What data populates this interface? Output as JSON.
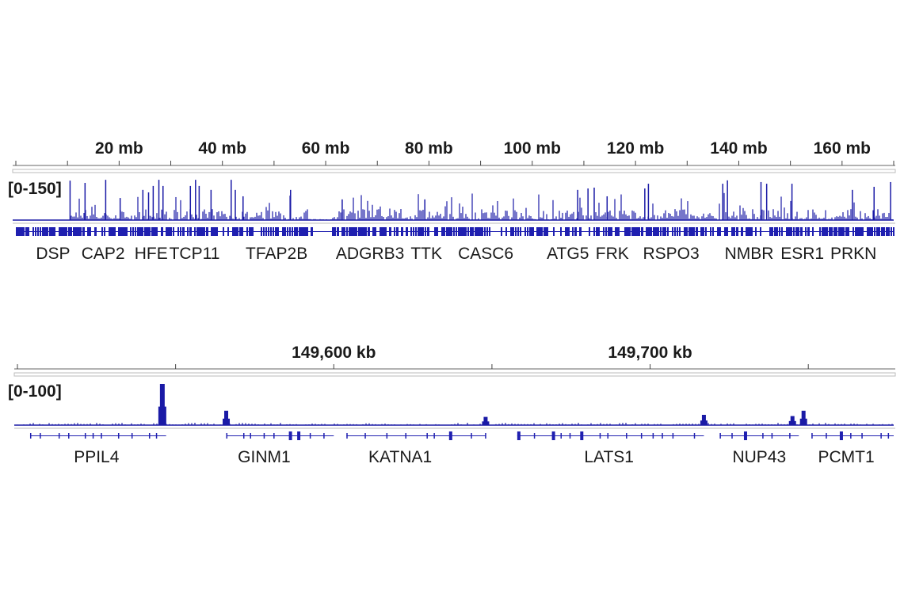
{
  "colors": {
    "signal": "#1a1aa6",
    "gene": "#1f1fb0",
    "axis": "#555555",
    "text": "#1a1a1a"
  },
  "chart_data": [
    {
      "type": "area",
      "xunit": "mb",
      "xlim": [
        0,
        170
      ],
      "ticks": [
        {
          "value": 20,
          "label": "20 mb"
        },
        {
          "value": 40,
          "label": "40 mb"
        },
        {
          "value": 60,
          "label": "60 mb"
        },
        {
          "value": 80,
          "label": "80 mb"
        },
        {
          "value": 100,
          "label": "100 mb"
        },
        {
          "value": 120,
          "label": "120 mb"
        },
        {
          "value": 140,
          "label": "140 mb"
        },
        {
          "value": 160,
          "label": "160 mb"
        }
      ],
      "data_range_label": "[0-150]",
      "ylim": [
        0,
        150
      ],
      "peaks": [
        [
          10.5,
          141
        ],
        [
          13.4,
          133
        ],
        [
          17.4,
          144
        ],
        [
          20.2,
          79
        ],
        [
          24.6,
          108
        ],
        [
          25.7,
          99
        ],
        [
          26.6,
          122
        ],
        [
          27.7,
          144
        ],
        [
          28.5,
          122
        ],
        [
          33.8,
          122
        ],
        [
          34.8,
          144
        ],
        [
          35.5,
          122
        ],
        [
          37.8,
          108
        ],
        [
          41.7,
          144
        ],
        [
          42.5,
          108
        ],
        [
          44,
          85
        ],
        [
          53.2,
          108
        ],
        [
          63.2,
          74
        ],
        [
          79.2,
          74
        ],
        [
          108.8,
          108
        ],
        [
          110.8,
          113
        ],
        [
          112,
          116
        ],
        [
          114.5,
          85
        ],
        [
          121.8,
          113
        ],
        [
          122.5,
          130
        ],
        [
          136.9,
          130
        ],
        [
          137.8,
          142
        ],
        [
          144.3,
          136
        ],
        [
          145.4,
          130
        ],
        [
          150.3,
          130
        ],
        [
          162,
          108
        ],
        [
          166.2,
          119
        ],
        [
          169.4,
          136
        ]
      ],
      "genes": [
        {
          "name": "DSP",
          "pos": 7.2
        },
        {
          "name": "CAP2",
          "pos": 16.9
        },
        {
          "name": "HFE",
          "pos": 26.2
        },
        {
          "name": "TCP11",
          "pos": 34.6
        },
        {
          "name": "TFAP2B",
          "pos": 50.5
        },
        {
          "name": "ADGRB3",
          "pos": 68.6
        },
        {
          "name": "TTK",
          "pos": 79.5
        },
        {
          "name": "CASC6",
          "pos": 91
        },
        {
          "name": "ATG5",
          "pos": 106.9
        },
        {
          "name": "FRK",
          "pos": 115.5
        },
        {
          "name": "RSPO3",
          "pos": 126.9
        },
        {
          "name": "NMBR",
          "pos": 142
        },
        {
          "name": "ESR1",
          "pos": 152.3
        },
        {
          "name": "PRKN",
          "pos": 162.2
        }
      ]
    },
    {
      "type": "area",
      "xunit": "kb",
      "xlim": [
        149500,
        149777
      ],
      "ticks": [
        {
          "value": 149600,
          "label": "149,600 kb"
        },
        {
          "value": 149700,
          "label": "149,700 kb"
        }
      ],
      "data_range_label": "[0-100]",
      "ylim": [
        0,
        100
      ],
      "peaks": [
        [
          149545.8,
          100
        ],
        [
          149566,
          35
        ],
        [
          149648,
          20
        ],
        [
          149717,
          25
        ],
        [
          149745,
          22
        ],
        [
          149748.5,
          35
        ]
      ],
      "genes": [
        {
          "name": "PPIL4",
          "pos": 149525
        },
        {
          "name": "GINM1",
          "pos": 149578
        },
        {
          "name": "KATNA1",
          "pos": 149621
        },
        {
          "name": "LATS1",
          "pos": 149687
        },
        {
          "name": "NUP43",
          "pos": 149734.5
        },
        {
          "name": "PCMT1",
          "pos": 149762
        }
      ]
    }
  ]
}
